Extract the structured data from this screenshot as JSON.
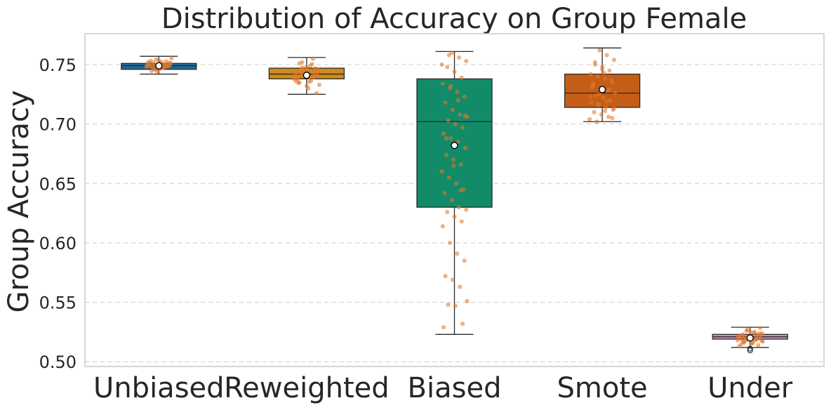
{
  "chart_data": {
    "type": "boxplot",
    "title": "Distribution of Accuracy on Group Female",
    "xlabel": "",
    "ylabel": "Group Accuracy",
    "ylim": [
      0.496,
      0.776
    ],
    "yticks": [
      "0.50",
      "0.55",
      "0.60",
      "0.65",
      "0.70",
      "0.75"
    ],
    "grid": "horizontal dashed",
    "categories": [
      "Unbiased",
      "Reweighted",
      "Biased",
      "Smote",
      "Under"
    ],
    "box_colors": [
      "#1f6b96",
      "#cf8a1c",
      "#128b68",
      "#c45e17",
      "#c98fbd"
    ],
    "point_color": "#e2782a",
    "boxes": [
      {
        "name": "Unbiased",
        "whislo": 0.742,
        "q1": 0.746,
        "med": 0.749,
        "q3": 0.751,
        "whishi": 0.757,
        "mean": 0.749,
        "fliers": []
      },
      {
        "name": "Reweighted",
        "whislo": 0.725,
        "q1": 0.738,
        "med": 0.742,
        "q3": 0.747,
        "whishi": 0.756,
        "mean": 0.741,
        "fliers": []
      },
      {
        "name": "Biased",
        "whislo": 0.523,
        "q1": 0.63,
        "med": 0.702,
        "q3": 0.738,
        "whishi": 0.761,
        "mean": 0.682,
        "fliers": []
      },
      {
        "name": "Smote",
        "whislo": 0.702,
        "q1": 0.714,
        "med": 0.726,
        "q3": 0.742,
        "whishi": 0.764,
        "mean": 0.729,
        "fliers": []
      },
      {
        "name": "Under",
        "whislo": 0.512,
        "q1": 0.519,
        "med": 0.521,
        "q3": 0.523,
        "whishi": 0.529,
        "mean": 0.52,
        "fliers": [
          0.5095,
          0.511
        ]
      }
    ],
    "points": [
      [
        0.7495,
        0.7472,
        0.751,
        0.7446,
        0.7535,
        0.7481,
        0.7502,
        0.746,
        0.7523,
        0.7488,
        0.7514,
        0.7441,
        0.7497,
        0.7553,
        0.7476,
        0.7509,
        0.7486,
        0.752,
        0.7465,
        0.7504,
        0.7492,
        0.7531,
        0.7455,
        0.7499,
        0.7482,
        0.7517,
        0.7469,
        0.7506,
        0.749,
        0.7542,
        0.7478,
        0.7511,
        0.7494,
        0.7458,
        0.7527,
        0.7485,
        0.7501,
        0.7473,
        0.7516,
        0.7489
      ],
      [
        0.742,
        0.7385,
        0.7455,
        0.735,
        0.748,
        0.741,
        0.7395,
        0.752,
        0.744,
        0.726,
        0.7375,
        0.7465,
        0.7505,
        0.733,
        0.7425,
        0.739,
        0.745,
        0.736,
        0.7415,
        0.749,
        0.74,
        0.7345,
        0.7435,
        0.755,
        0.738,
        0.746,
        0.73,
        0.747,
        0.7405,
        0.743,
        0.7365,
        0.7445,
        0.751,
        0.732,
        0.7395,
        0.7425,
        0.7475,
        0.7355,
        0.7415,
        0.744
      ],
      [
        0.76,
        0.756,
        0.753,
        0.748,
        0.744,
        0.739,
        0.734,
        0.73,
        0.727,
        0.723,
        0.718,
        0.712,
        0.708,
        0.706,
        0.703,
        0.7,
        0.697,
        0.692,
        0.688,
        0.685,
        0.68,
        0.674,
        0.67,
        0.666,
        0.66,
        0.655,
        0.65,
        0.645,
        0.642,
        0.636,
        0.63,
        0.628,
        0.626,
        0.622,
        0.618,
        0.614,
        0.6,
        0.591,
        0.585,
        0.572,
        0.569,
        0.563,
        0.551,
        0.548,
        0.547,
        0.532,
        0.529,
        0.732,
        0.72,
        0.707,
        0.688,
        0.665,
        0.644,
        0.75,
        0.758
      ],
      [
        0.762,
        0.758,
        0.754,
        0.75,
        0.748,
        0.745,
        0.742,
        0.74,
        0.738,
        0.735,
        0.733,
        0.73,
        0.728,
        0.726,
        0.724,
        0.722,
        0.72,
        0.718,
        0.716,
        0.714,
        0.712,
        0.71,
        0.708,
        0.706,
        0.704,
        0.702,
        0.743,
        0.737,
        0.731,
        0.725,
        0.719,
        0.713,
        0.752,
        0.746,
        0.729,
        0.723,
        0.717,
        0.711,
        0.705,
        0.734
      ],
      [
        0.527,
        0.525,
        0.524,
        0.523,
        0.522,
        0.5215,
        0.521,
        0.5205,
        0.52,
        0.5195,
        0.519,
        0.5185,
        0.518,
        0.517,
        0.516,
        0.515,
        0.514,
        0.513,
        0.526,
        0.5245,
        0.5225,
        0.5212,
        0.5202,
        0.5192,
        0.5182,
        0.5172,
        0.5162,
        0.5235,
        0.5218,
        0.5198,
        0.5188,
        0.5176,
        0.5166,
        0.5255,
        0.5228,
        0.5208,
        0.5178,
        0.5155,
        0.5285,
        0.5145
      ]
    ]
  }
}
